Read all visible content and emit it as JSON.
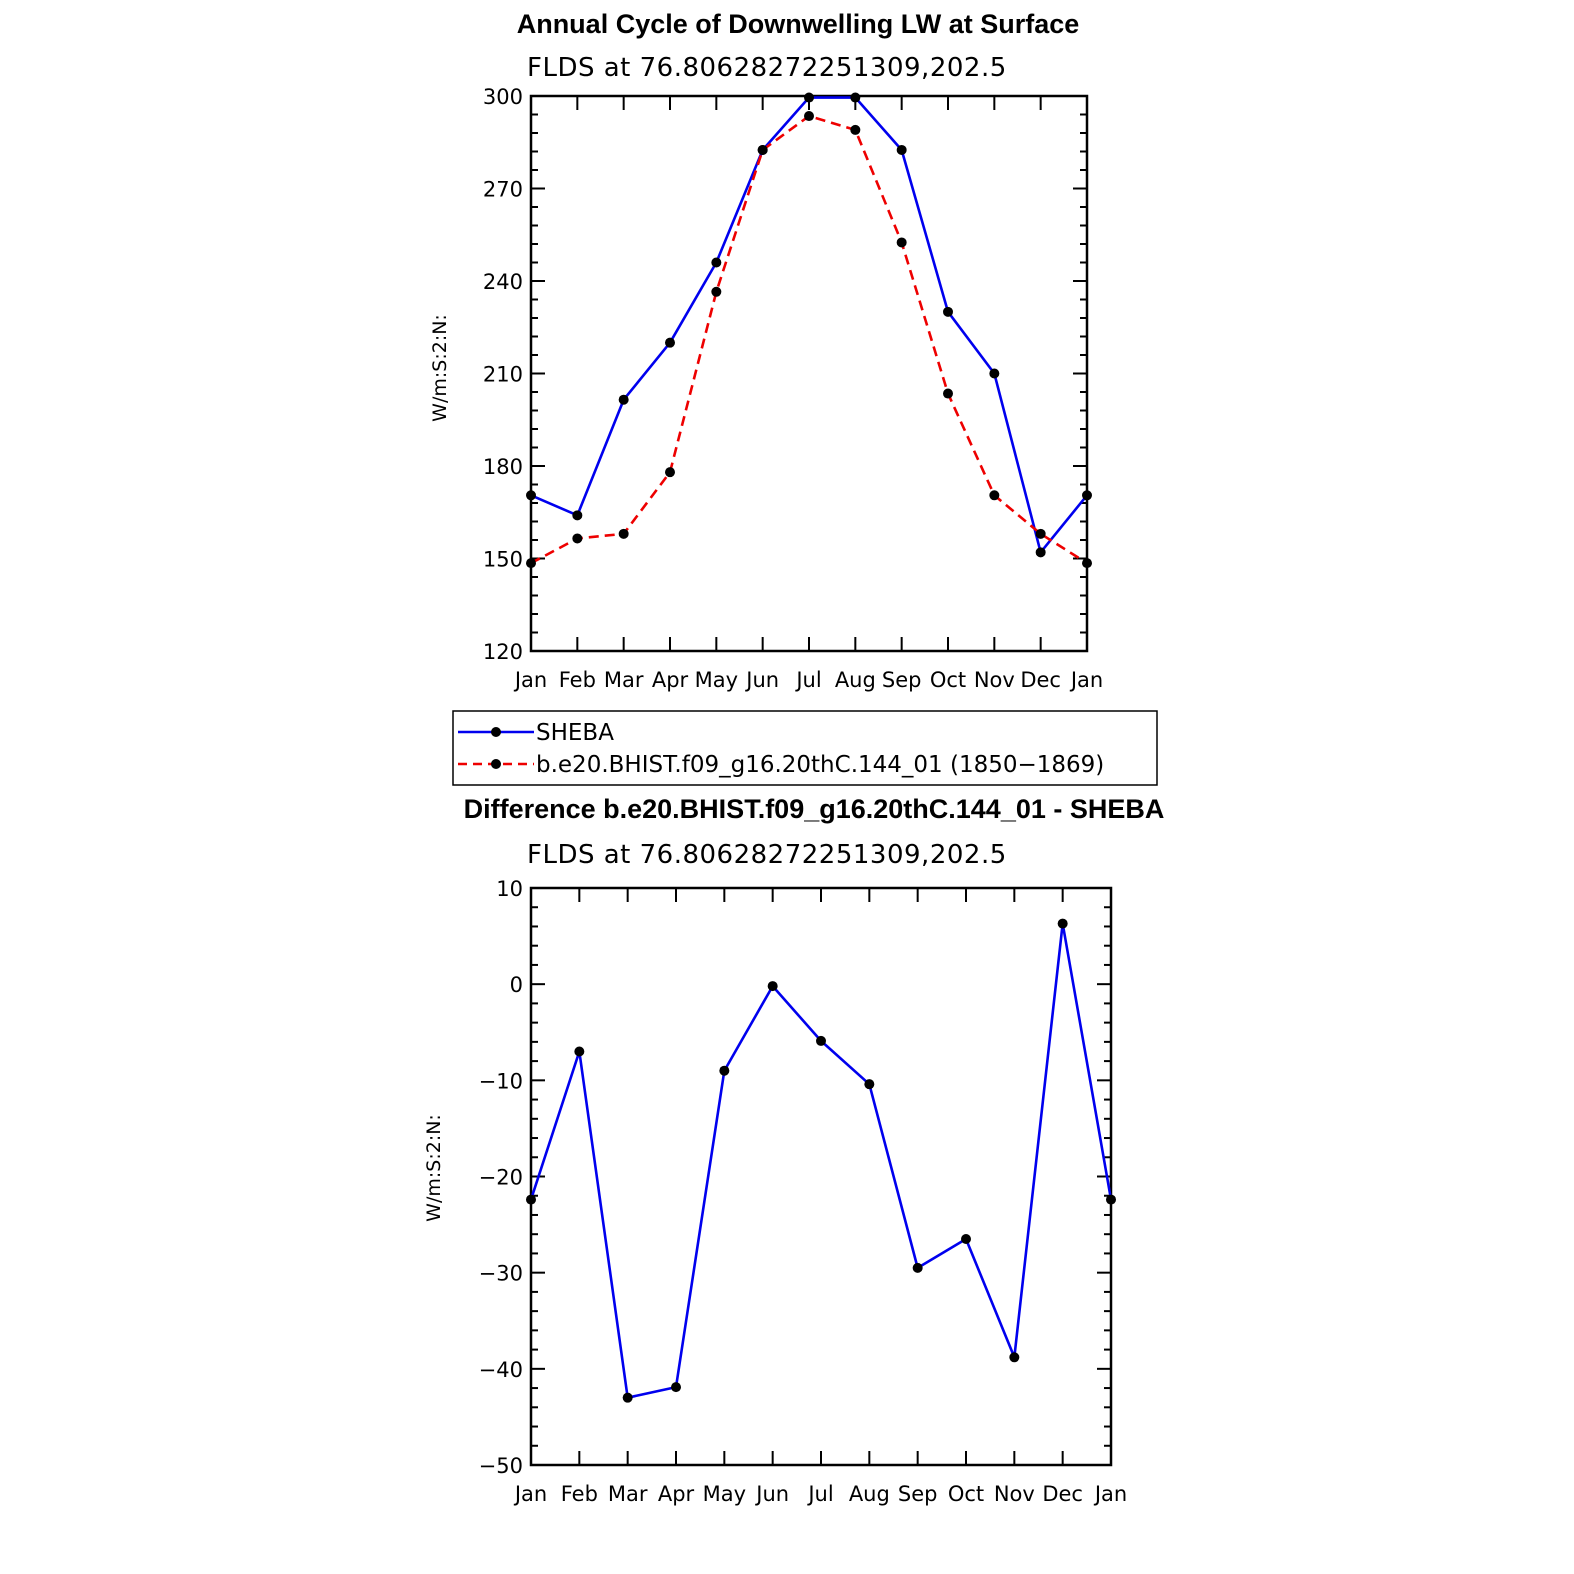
{
  "chart_data": [
    {
      "type": "line",
      "title": "Annual Cycle of Downwelling LW at Surface",
      "subtitle": "FLDS at 76.80628272251309,202.5",
      "ylabel": "W/m:S:2:N:",
      "xlabel": "",
      "categories": [
        "Jan",
        "Feb",
        "Mar",
        "Apr",
        "May",
        "Jun",
        "Jul",
        "Aug",
        "Sep",
        "Oct",
        "Nov",
        "Dec",
        "Jan"
      ],
      "ylim": [
        120,
        300
      ],
      "yticks": [
        120,
        150,
        180,
        210,
        240,
        270,
        300
      ],
      "grid": false,
      "legend_position": "bottom",
      "series": [
        {
          "name": "SHEBA",
          "color": "#0000ee",
          "dash": "solid",
          "values": [
            170.5,
            164,
            201.5,
            220,
            246,
            282.5,
            299.5,
            299.5,
            282.5,
            230,
            210,
            152,
            170.5
          ]
        },
        {
          "name": "b.e20.BHIST.f09_g16.20thC.144_01 (1850−1869)",
          "color": "#ee0000",
          "dash": "dashed",
          "values": [
            148.5,
            156.5,
            158,
            178,
            236.5,
            282.5,
            293.5,
            289,
            252.5,
            203.5,
            170.5,
            158,
            148.5
          ]
        }
      ]
    },
    {
      "type": "line",
      "title": "Difference b.e20.BHIST.f09_g16.20thC.144_01 - SHEBA",
      "subtitle": "FLDS at 76.80628272251309,202.5",
      "ylabel": "W/m:S:2:N:",
      "xlabel": "",
      "categories": [
        "Jan",
        "Feb",
        "Mar",
        "Apr",
        "May",
        "Jun",
        "Jul",
        "Aug",
        "Sep",
        "Oct",
        "Nov",
        "Dec",
        "Jan"
      ],
      "ylim": [
        -50,
        10
      ],
      "yticks": [
        -50,
        -40,
        -30,
        -20,
        -10,
        0,
        10
      ],
      "ytick_labels": [
        "−50",
        "−40",
        "−30",
        "−20",
        "−10",
        "0",
        "10"
      ],
      "grid": false,
      "series": [
        {
          "color": "#0000ee",
          "dash": "solid",
          "values": [
            -22.4,
            -7,
            -43,
            -41.9,
            -9,
            -0.2,
            -5.9,
            -10.4,
            -29.5,
            -26.5,
            -38.8,
            6.3,
            -22.4
          ]
        }
      ]
    }
  ]
}
